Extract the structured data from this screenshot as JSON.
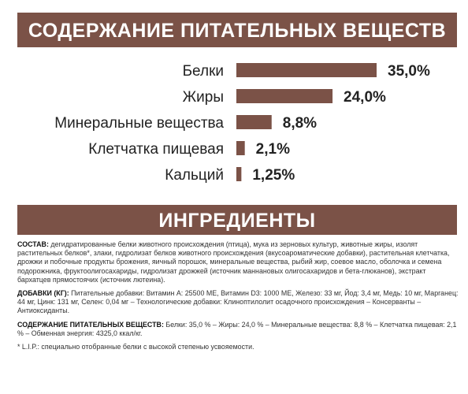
{
  "header": {
    "title": "СОДЕРЖАНИЕ ПИТАТЕЛЬНЫХ ВЕЩЕСТВ"
  },
  "chart_data": {
    "type": "bar",
    "orientation": "horizontal",
    "categories": [
      "Белки",
      "Жиры",
      "Минеральные вещества",
      "Клетчатка пищевая",
      "Кальций"
    ],
    "values": [
      35.0,
      24.0,
      8.8,
      2.1,
      1.25
    ],
    "labels": [
      "35,0%",
      "24,0%",
      "8,8%",
      "2,1%",
      "1,25%"
    ],
    "bar_color": "#7b5247",
    "title": "СОДЕРЖАНИЕ ПИТАТЕЛЬНЫХ ВЕЩЕСТВ",
    "xlabel": "",
    "ylabel": "",
    "xlim": [
      0,
      35
    ],
    "grid": false
  },
  "ingredients": {
    "title": "ИНГРЕДИЕНТЫ",
    "composition_key": "СОСТАВ:",
    "composition_text": " дегидратированные белки животного происхождения (птица), мука из зерновых культур, животные жиры, изолят растительных белков*, злаки, гидролизат белков животного происхождения (вкусоароматические добавки), растительная клетчатка, дрожжи и побочные продукты брожения, яичный порошок, минеральные вещества, рыбий жир, соевое масло, оболочка и семена подорожника, фруктоолигосахариды, гидролизат дрожжей (источник маннановых олигосахаридов и бета-глюканов), экстракт бархатцев прямостоячих (источник лютеина).",
    "additives_key": "ДОБАВКИ (КГ):",
    "additives_text": " Питательные добавки: Витамин A: 25500 МЕ, Витамин D3: 1000 МЕ, Железо: 33 мг, Йод: 3,4 мг, Медь: 10 мг, Марганец: 44 мг, Цинк: 131 мг, Селен: 0,04 мг – Технологические добавки: Клиноптилолит осадочного происхождения – Консерванты – Антиоксиданты.",
    "nutrients_key": "СОДЕРЖАНИЕ ПИТАТЕЛЬНЫХ ВЕЩЕСТВ:",
    "nutrients_text": " Белки: 35,0 % – Жиры: 24,0 % – Минеральные вещества: 8,8 % – Клетчатка пищевая: 2,1 % – Обменная энергия: 4325,0 ккал/кг.",
    "footnote": "* L.I.P.: специально отобранные белки с высокой степенью усвояемости."
  }
}
